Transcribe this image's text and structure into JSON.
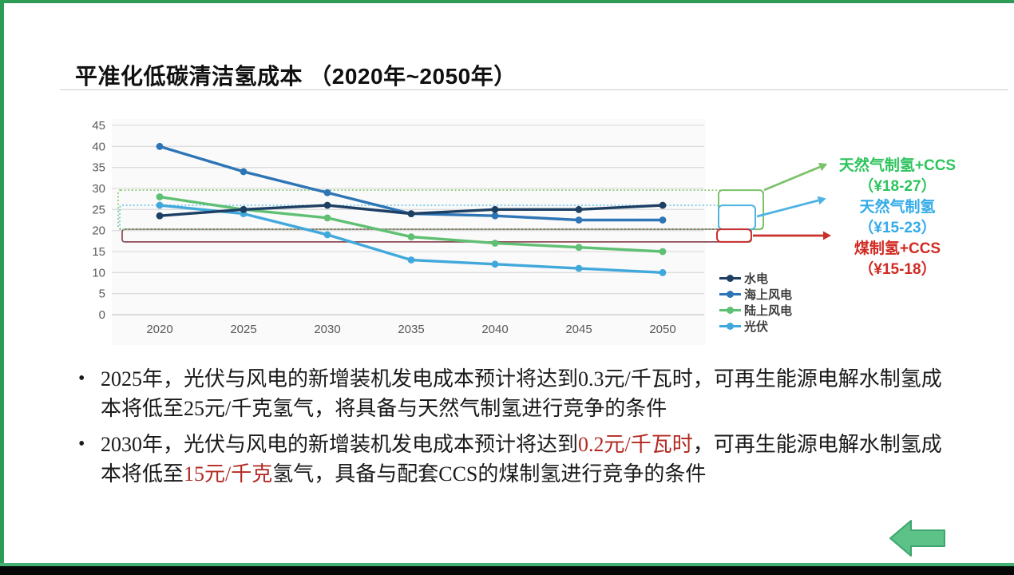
{
  "title": {
    "text": "平准化低碳清洁氢成本 （2020年~2050年）"
  },
  "chart_data": {
    "type": "line",
    "title": "平准化低碳清洁氢成本 （2020年~2050年）",
    "x": [
      2020,
      2025,
      2030,
      2035,
      2040,
      2045,
      2050
    ],
    "xlabel": "",
    "ylabel": "",
    "ylim": [
      0,
      45
    ],
    "ytick_step": 5,
    "grid": true,
    "legend_position": "right-bottom",
    "series": [
      {
        "name": "水电",
        "color": "#1d3f63",
        "values": [
          23.5,
          25,
          26,
          24,
          25,
          25,
          26
        ]
      },
      {
        "name": "海上风电",
        "color": "#2e75b6",
        "values": [
          40,
          34,
          29,
          24,
          23.5,
          22.5,
          22.5
        ]
      },
      {
        "name": "陆上风电",
        "color": "#5fbf72",
        "values": [
          28,
          25,
          23,
          18.5,
          17,
          16,
          15
        ]
      },
      {
        "name": "光伏",
        "color": "#41a8dc",
        "values": [
          26,
          24,
          19,
          13,
          12,
          11,
          10
        ]
      }
    ],
    "bands": [
      {
        "label": "天然气制氢+CCS",
        "range_label": "（¥18-27）",
        "color": "#2ec45e",
        "box": {
          "top": 29.6,
          "bottom": 20.3,
          "style": "dashed",
          "stroke": "#8fca7a",
          "cap_stroke": "#7cc26a"
        }
      },
      {
        "label": "天然气制氢",
        "range_label": "（¥15-23）",
        "color": "#33abe8",
        "box": {
          "top": 26,
          "bottom": 20.3,
          "style": "dashed",
          "stroke": "#72c7e7",
          "cap_stroke": "#4fb3e2"
        }
      },
      {
        "label": "煤制氢+CCS",
        "range_label": "（¥15-18）",
        "color": "#d02a22",
        "box": {
          "top": 20.3,
          "bottom": 17.3,
          "style": "solid",
          "stroke": "#8d4a55",
          "cap_stroke": "#c9302c"
        }
      }
    ]
  },
  "bullets": [
    {
      "marker": "•",
      "segments": [
        {
          "t": "2025年，光伏与风电的新增装机发电成本预计将达到0.3元/千瓦时，可再生能源电解水制氢成本将低至25元/千克氢气，将具备与天然气制氢进行竞争的条件"
        }
      ]
    },
    {
      "marker": "•",
      "segments": [
        {
          "t": "2030年，光伏与风电的新增装机发电成本预计将达到"
        },
        {
          "t": "0.2元/千瓦时",
          "red": true
        },
        {
          "t": "，可再生能源电解水制氢成本将低至"
        },
        {
          "t": "15元/千克",
          "red": true
        },
        {
          "t": "氢气，具备与配套CCS的煤制氢进行竞争的条件"
        }
      ]
    }
  ]
}
